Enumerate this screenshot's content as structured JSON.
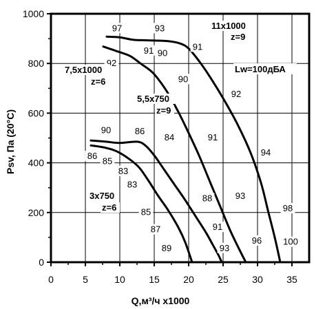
{
  "chart_data": {
    "type": "line",
    "xlabel": "Q,м³/ч x1000",
    "ylabel": "Psv, Па (20°C)",
    "xlim": [
      0,
      37.5
    ],
    "ylim": [
      0,
      1000
    ],
    "x_ticks": [
      "0",
      "5",
      "10",
      "15",
      "20",
      "25",
      "30",
      "35"
    ],
    "y_ticks": [
      "0",
      "200",
      "400",
      "600",
      "800",
      "1000"
    ],
    "grid": true,
    "annotation": "Lw=100дБА",
    "series": [
      {
        "label_lines": [
          "11x1000",
          "z=9"
        ],
        "points": [
          [
            8.1,
            908
          ],
          [
            10,
            905
          ],
          [
            12,
            895
          ],
          [
            14,
            893
          ],
          [
            17,
            890
          ],
          [
            18.8,
            880
          ],
          [
            20,
            860
          ],
          [
            21.5,
            810
          ],
          [
            23,
            750
          ],
          [
            25,
            660
          ],
          [
            27,
            560
          ],
          [
            29,
            440
          ],
          [
            30.5,
            320
          ],
          [
            31.5,
            210
          ],
          [
            32.5,
            100
          ],
          [
            33.3,
            0
          ]
        ],
        "noise": [
          {
            "text": "97",
            "x": 9.6,
            "y": 930
          },
          {
            "text": "93",
            "x": 15.8,
            "y": 930
          },
          {
            "text": "91",
            "x": 21.3,
            "y": 855
          },
          {
            "text": "92",
            "x": 26.9,
            "y": 665
          },
          {
            "text": "94",
            "x": 31.2,
            "y": 430
          },
          {
            "text": "98",
            "x": 34.4,
            "y": 205
          },
          {
            "text": "100",
            "x": 34.8,
            "y": 70
          }
        ]
      },
      {
        "label_lines": [
          "7,5x1000",
          "z=6"
        ],
        "points": [
          [
            7.6,
            868
          ],
          [
            9.5,
            850
          ],
          [
            11.5,
            830
          ],
          [
            13,
            800
          ],
          [
            14.5,
            770
          ],
          [
            15.5,
            740
          ],
          [
            17,
            680
          ],
          [
            18.5,
            605
          ],
          [
            20,
            520
          ],
          [
            21.5,
            430
          ],
          [
            23,
            330
          ],
          [
            24.5,
            230
          ],
          [
            26,
            130
          ],
          [
            27.2,
            60
          ],
          [
            28.3,
            0
          ]
        ],
        "noise": [
          {
            "text": "92",
            "x": 8.8,
            "y": 790
          },
          {
            "text": "91",
            "x": 14.2,
            "y": 840
          },
          {
            "text": "90",
            "x": 16.2,
            "y": 830
          },
          {
            "text": "90",
            "x": 19.2,
            "y": 725
          },
          {
            "text": "91",
            "x": 23.5,
            "y": 490
          },
          {
            "text": "93",
            "x": 27.5,
            "y": 255
          },
          {
            "text": "96",
            "x": 29.9,
            "y": 75
          }
        ]
      },
      {
        "label_lines": [
          "5,5x750",
          "z=9"
        ],
        "points": [
          [
            5.8,
            490
          ],
          [
            8,
            485
          ],
          [
            10,
            480
          ],
          [
            12.5,
            485
          ],
          [
            13.7,
            470
          ],
          [
            15,
            430
          ],
          [
            16.5,
            370
          ],
          [
            18,
            310
          ],
          [
            19.5,
            250
          ],
          [
            21,
            185
          ],
          [
            22.5,
            120
          ],
          [
            23.5,
            70
          ],
          [
            24.3,
            30
          ],
          [
            24.8,
            0
          ]
        ],
        "noise": [
          {
            "text": "90",
            "x": 8.0,
            "y": 520
          },
          {
            "text": "86",
            "x": 12.9,
            "y": 515
          },
          {
            "text": "84",
            "x": 17.2,
            "y": 490
          },
          {
            "text": "88",
            "x": 22.7,
            "y": 245
          },
          {
            "text": "91",
            "x": 24.2,
            "y": 130
          },
          {
            "text": "93",
            "x": 25.2,
            "y": 45
          }
        ]
      },
      {
        "label_lines": [
          "3x750",
          "z=6"
        ],
        "points": [
          [
            5.8,
            470
          ],
          [
            8,
            460
          ],
          [
            10,
            440
          ],
          [
            12.5,
            390
          ],
          [
            14,
            335
          ],
          [
            15.5,
            270
          ],
          [
            17,
            210
          ],
          [
            18.5,
            140
          ],
          [
            19.5,
            80
          ],
          [
            20.5,
            0
          ]
        ],
        "noise": [
          {
            "text": "86",
            "x": 6.0,
            "y": 415
          },
          {
            "text": "85",
            "x": 8.2,
            "y": 395
          },
          {
            "text": "83",
            "x": 10.5,
            "y": 355
          },
          {
            "text": "83",
            "x": 11.8,
            "y": 300
          },
          {
            "text": "85",
            "x": 13.8,
            "y": 190
          },
          {
            "text": "87",
            "x": 15.2,
            "y": 120
          },
          {
            "text": "89",
            "x": 16.8,
            "y": 45
          }
        ]
      }
    ]
  }
}
